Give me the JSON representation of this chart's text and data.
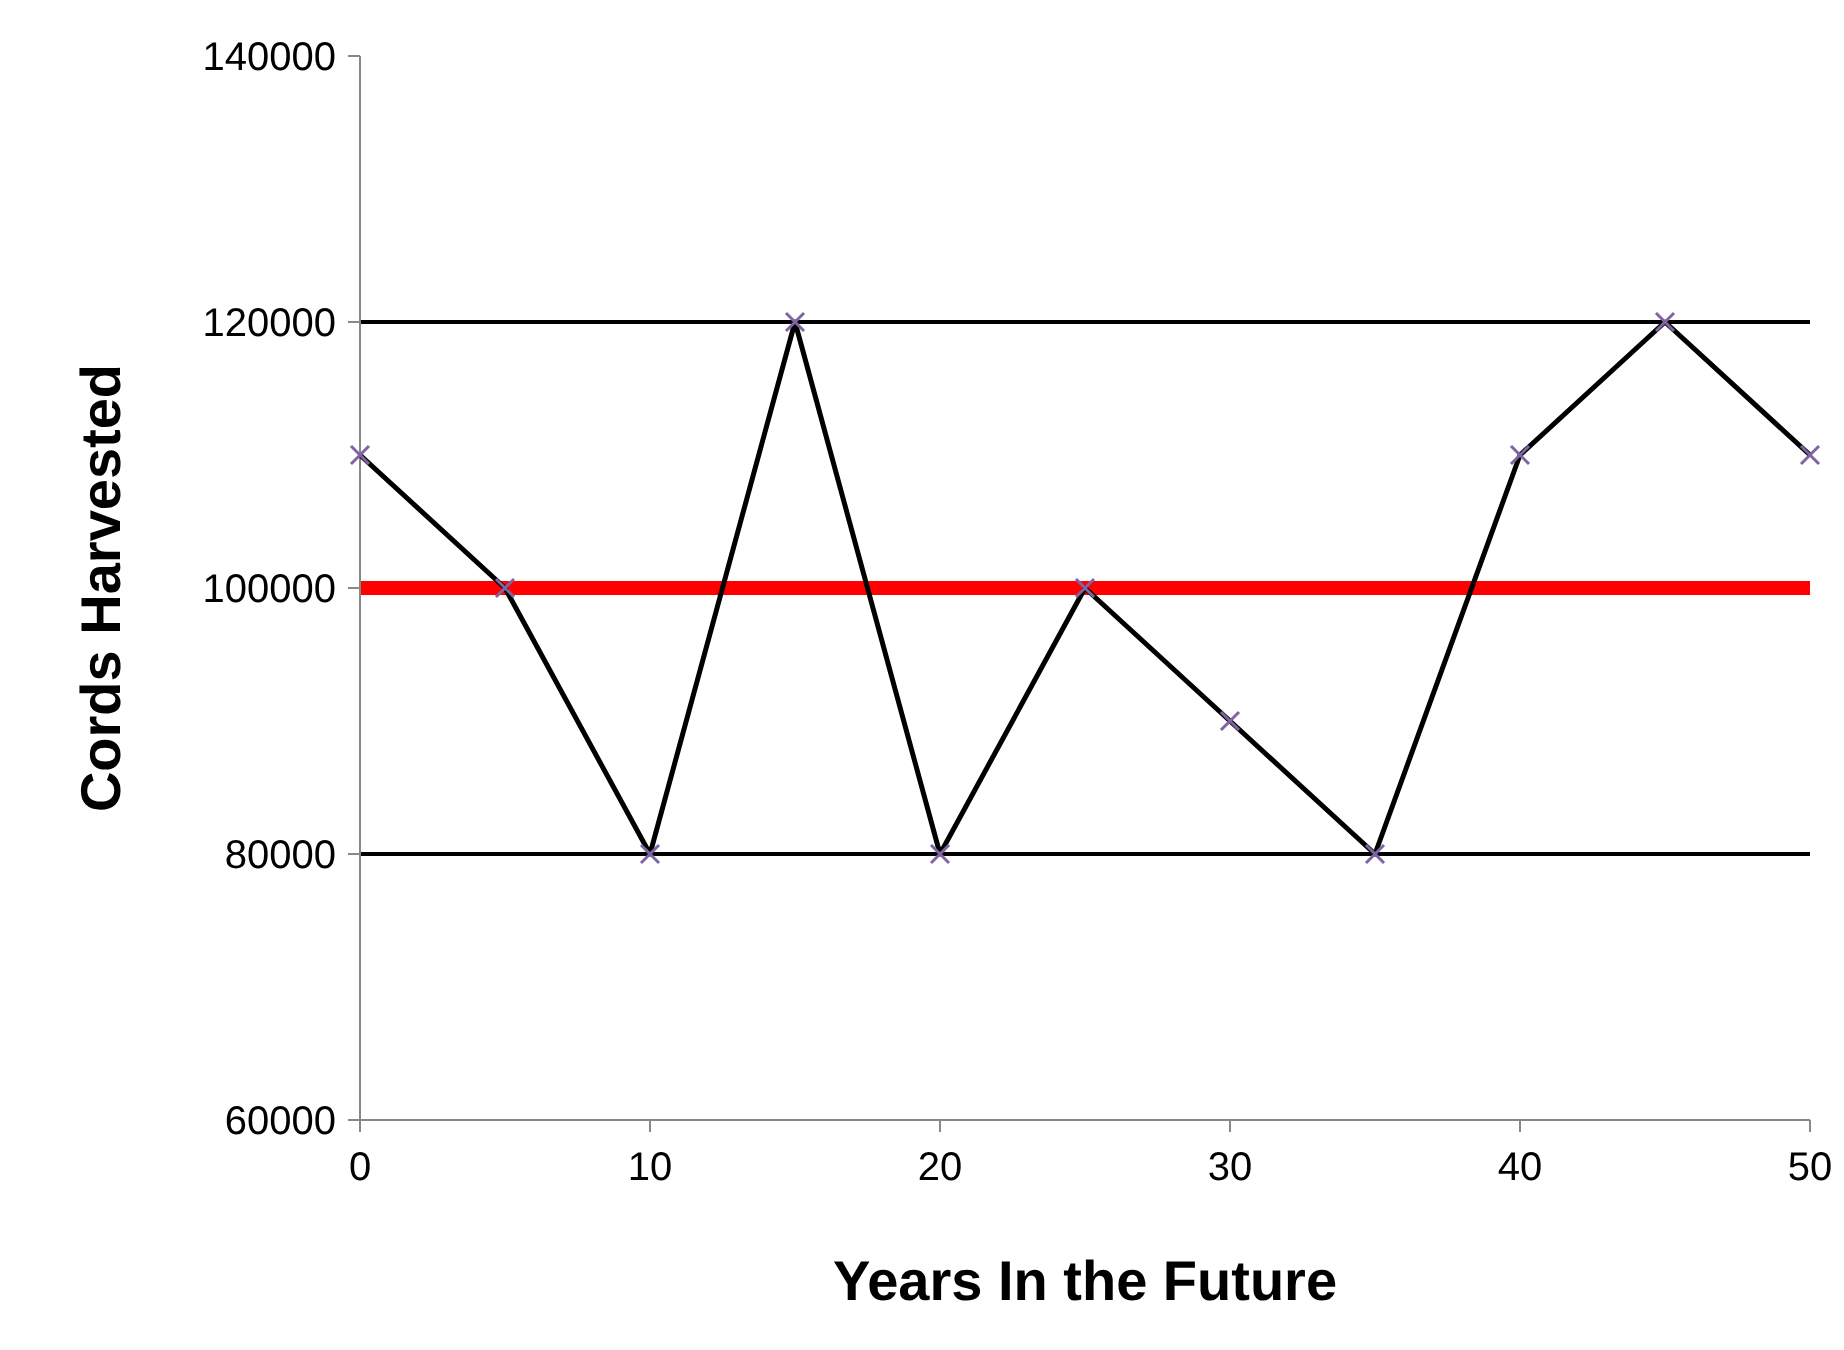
{
  "chart_data": {
    "type": "line",
    "xlabel": "Years In the Future",
    "ylabel": "Cords Harvested",
    "x": [
      0,
      5,
      10,
      15,
      20,
      25,
      30,
      35,
      40,
      45,
      50
    ],
    "series": [
      {
        "color": "#000000",
        "values": [
          110000,
          100000,
          80000,
          120000,
          80000,
          100000,
          90000,
          80000,
          110000,
          120000,
          110000
        ]
      }
    ],
    "xlim": [
      0,
      50
    ],
    "xticks": [
      0,
      10,
      20,
      30,
      40,
      50
    ],
    "ylim": [
      60000,
      140000
    ],
    "yticks": [
      60000,
      80000,
      100000,
      120000,
      140000
    ],
    "ref_lines": [
      {
        "axis": "y",
        "value": 120000,
        "color": "#000000"
      },
      {
        "axis": "y",
        "value": 80000,
        "color": "#000000"
      },
      {
        "axis": "y",
        "value": 100000,
        "color": "#ff0000"
      }
    ],
    "marker": "cross",
    "line_style": "solid"
  }
}
